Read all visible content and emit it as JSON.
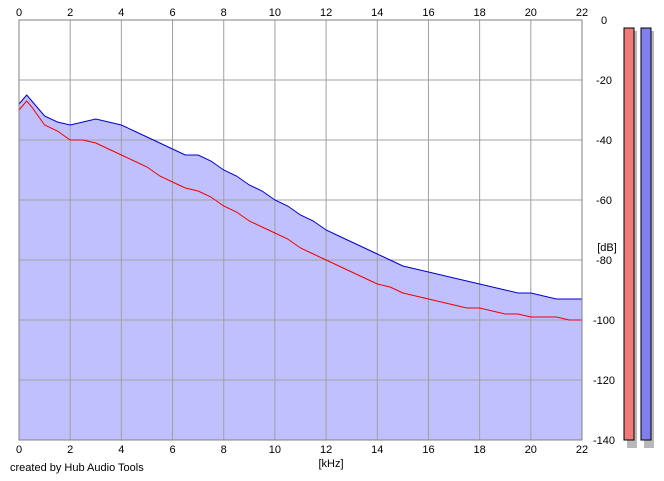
{
  "footer": {
    "credit": "created by Hub Audio Tools"
  },
  "chart_data": {
    "type": "area",
    "xlabel": "[kHz]",
    "ylabel": "[dB]",
    "xlim": [
      0,
      22
    ],
    "ylim": [
      -140,
      0
    ],
    "x_ticks": [
      0,
      2,
      4,
      6,
      8,
      10,
      12,
      14,
      16,
      18,
      20,
      22
    ],
    "y_ticks": [
      0,
      -20,
      -40,
      -60,
      -80,
      -100,
      -120,
      -140
    ],
    "grid": true,
    "series": [
      {
        "channel": "blue",
        "color": "#0000cc",
        "fill": "#c0c0ff",
        "x": [
          0.0,
          0.3,
          0.5,
          1.0,
          1.5,
          2.0,
          2.5,
          3.0,
          3.5,
          4.0,
          4.5,
          5.0,
          5.5,
          6.0,
          6.5,
          7.0,
          7.5,
          8.0,
          8.5,
          9.0,
          9.5,
          10.0,
          10.5,
          11.0,
          11.5,
          12.0,
          12.5,
          13.0,
          13.5,
          14.0,
          14.5,
          15.0,
          15.5,
          16.0,
          16.5,
          17.0,
          17.5,
          18.0,
          18.5,
          19.0,
          19.5,
          20.0,
          20.5,
          21.0,
          21.5,
          22.0
        ],
        "y": [
          -28,
          -25,
          -27,
          -32,
          -34,
          -35,
          -34,
          -33,
          -34,
          -35,
          -37,
          -39,
          -41,
          -43,
          -45,
          -45,
          -47,
          -50,
          -52,
          -55,
          -57,
          -60,
          -62,
          -65,
          -67,
          -70,
          -72,
          -74,
          -76,
          -78,
          -80,
          -82,
          -83,
          -84,
          -85,
          -86,
          -87,
          -88,
          -89,
          -90,
          -91,
          -91,
          -92,
          -93,
          -93,
          -93
        ]
      },
      {
        "channel": "red",
        "color": "#ee0000",
        "x": [
          0.0,
          0.3,
          0.5,
          1.0,
          1.5,
          2.0,
          2.5,
          3.0,
          3.5,
          4.0,
          4.5,
          5.0,
          5.5,
          6.0,
          6.5,
          7.0,
          7.5,
          8.0,
          8.5,
          9.0,
          9.5,
          10.0,
          10.5,
          11.0,
          11.5,
          12.0,
          12.5,
          13.0,
          13.5,
          14.0,
          14.5,
          15.0,
          15.5,
          16.0,
          16.5,
          17.0,
          17.5,
          18.0,
          18.5,
          19.0,
          19.5,
          20.0,
          20.5,
          21.0,
          21.5,
          22.0
        ],
        "y": [
          -30,
          -27,
          -29,
          -35,
          -37,
          -40,
          -40,
          -41,
          -43,
          -45,
          -47,
          -49,
          -52,
          -54,
          -56,
          -57,
          -59,
          -62,
          -64,
          -67,
          -69,
          -71,
          -73,
          -76,
          -78,
          -80,
          -82,
          -84,
          -86,
          -88,
          -89,
          -91,
          -92,
          -93,
          -94,
          -95,
          -96,
          -96,
          -97,
          -98,
          -98,
          -99,
          -99,
          -99,
          -100,
          -100
        ]
      }
    ],
    "level_meters": [
      {
        "channel": "red",
        "color": "#ee7a7a"
      },
      {
        "channel": "blue",
        "color": "#7f7fee"
      }
    ]
  }
}
